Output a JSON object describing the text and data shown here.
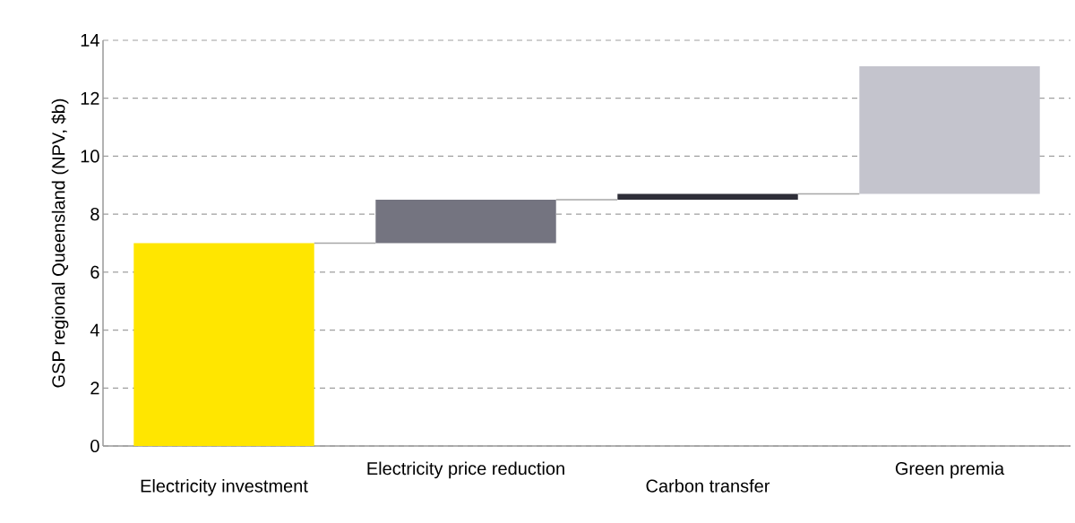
{
  "chart_data": {
    "type": "bar",
    "ylabel": "GSP regional Queensland (NPV, $b)",
    "categories": [
      "Electricity investment",
      "Electricity price reduction",
      "Carbon transfer",
      "Green premia"
    ],
    "values": [
      7.0,
      1.5,
      0.2,
      4.4
    ],
    "base": [
      0,
      7.0,
      8.5,
      8.7
    ],
    "colors": [
      "#ffe600",
      "#747480",
      "#2e2e38",
      "#c4c4cd"
    ],
    "ylim": [
      0,
      14
    ],
    "yticks": [
      0,
      2,
      4,
      6,
      8,
      10,
      12,
      14
    ],
    "grid": "y"
  }
}
